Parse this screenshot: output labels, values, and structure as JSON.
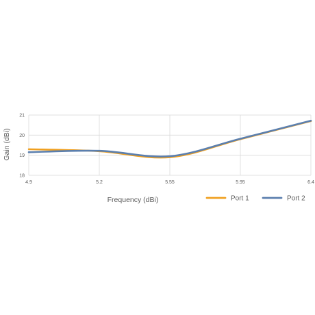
{
  "chart_data": {
    "type": "line",
    "title": "",
    "xlabel": "Frequency (dBi)",
    "ylabel": "Gain (dBi)",
    "x_ticks": [
      "4.9",
      "5.2",
      "5.55",
      "5.95",
      "6.4"
    ],
    "y_ticks": [
      "18",
      "19",
      "20",
      "21"
    ],
    "xlim": [
      4.9,
      6.4
    ],
    "ylim": [
      18,
      21
    ],
    "grid": true,
    "legend_position": "bottom-right",
    "series": [
      {
        "name": "Port 1",
        "color": "#f0a020",
        "x": [
          4.9,
          5.2,
          5.55,
          5.95,
          6.4
        ],
        "values": [
          19.3,
          19.2,
          18.9,
          19.8,
          20.7
        ]
      },
      {
        "name": "Port 2",
        "color": "#5b7fae",
        "x": [
          4.9,
          5.2,
          5.55,
          5.95,
          6.4
        ],
        "values": [
          19.15,
          19.22,
          18.95,
          19.82,
          20.72
        ]
      }
    ]
  }
}
